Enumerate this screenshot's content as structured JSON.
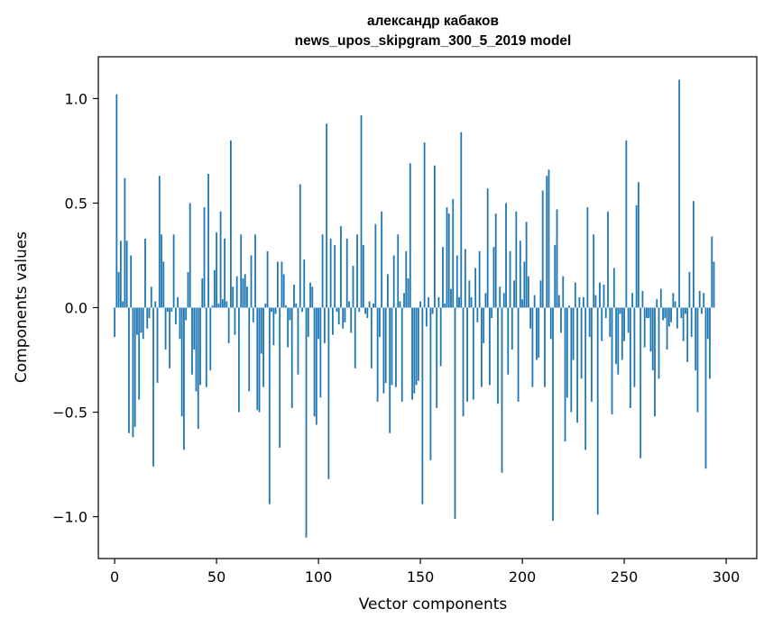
{
  "chart_data": {
    "type": "bar",
    "title": "александр кабаков",
    "subtitle": "news_upos_skipgram_300_5_2019 model",
    "xlabel": "Vector components",
    "ylabel": "Components values",
    "xlim": [
      -8,
      315
    ],
    "ylim": [
      -1.2,
      1.2
    ],
    "x_ticks": [
      0,
      50,
      100,
      150,
      200,
      250,
      300
    ],
    "x_tick_labels": [
      "0",
      "50",
      "100",
      "150",
      "200",
      "250",
      "300"
    ],
    "y_ticks": [
      1.0,
      0.5,
      0.0,
      -0.5,
      -1.0
    ],
    "y_tick_labels": [
      "1.0",
      "0.5",
      "0.0",
      "−0.5",
      "−1.0"
    ],
    "grid": false,
    "bar_color": "#1f77b4",
    "series": [
      {
        "name": "александр кабаков",
        "values": [
          -0.14,
          1.02,
          0.17,
          0.32,
          0.03,
          0.62,
          0.32,
          -0.6,
          0.25,
          -0.62,
          -0.57,
          -0.13,
          -0.44,
          -0.12,
          -0.15,
          0.33,
          -0.1,
          -0.05,
          0.1,
          -0.76,
          0.03,
          -0.36,
          0.63,
          0.35,
          0.22,
          -0.2,
          -0.02,
          -0.29,
          -0.02,
          0.35,
          -0.08,
          0.05,
          -0.15,
          -0.52,
          -0.68,
          -0.06,
          0.17,
          0.5,
          -0.32,
          -0.2,
          -0.4,
          -0.58,
          -0.37,
          0.14,
          0.48,
          -0.38,
          0.64,
          -0.3,
          0.01,
          0.18,
          0.36,
          0.02,
          0.46,
          0.04,
          0.33,
          0.03,
          -0.17,
          0.8,
          0.1,
          -0.13,
          0.15,
          -0.5,
          0.35,
          0.14,
          0.16,
          0.1,
          -0.4,
          0.25,
          -0.07,
          0.35,
          -0.49,
          -0.5,
          -0.22,
          -0.38,
          0.02,
          0.27,
          -0.94,
          -0.02,
          -0.18,
          -0.03,
          0.22,
          -0.67,
          0.22,
          0.16,
          0.01,
          -0.19,
          -0.06,
          -0.48,
          0.11,
          0.02,
          -0.32,
          0.59,
          -0.02,
          0.23,
          -1.1,
          -0.14,
          0.12,
          0.1,
          -0.52,
          -0.56,
          -0.15,
          -0.43,
          0.35,
          -0.17,
          0.88,
          -0.82,
          0.33,
          -0.13,
          0.3,
          -0.02,
          -0.08,
          0.39,
          -0.1,
          -0.07,
          0.33,
          0.03,
          -0.12,
          0.2,
          -0.29,
          0.35,
          -0.02,
          0.92,
          0.3,
          -0.03,
          -0.05,
          0.03,
          -0.29,
          0.02,
          0.4,
          -0.45,
          -0.14,
          0.46,
          -0.41,
          -0.36,
          0.16,
          -0.6,
          -0.37,
          0.25,
          -0.38,
          0.35,
          0.03,
          -0.45,
          0.07,
          0.27,
          0.14,
          0.69,
          -0.44,
          -0.41,
          -0.37,
          -0.35,
          0.03,
          -0.94,
          0.79,
          -0.09,
          0.05,
          -0.73,
          -0.03,
          0.68,
          -0.48,
          0.05,
          -0.28,
          0.29,
          0.02,
          0.48,
          0.45,
          0.09,
          0.52,
          -1.01,
          0.25,
          0.05,
          0.84,
          -0.52,
          0.28,
          -0.45,
          0.13,
          0.05,
          -0.44,
          0.19,
          -0.07,
          0.27,
          -0.38,
          -0.17,
          0.07,
          0.57,
          -0.37,
          -0.05,
          0.29,
          0.45,
          -0.46,
          0.1,
          -0.79,
          0.07,
          0.5,
          -0.32,
          0.27,
          -0.2,
          0.13,
          0.46,
          -0.45,
          0.32,
          0.04,
          0.22,
          0.41,
          0.15,
          -0.1,
          -0.38,
          0.06,
          -0.25,
          -0.24,
          0.13,
          0.56,
          -0.38,
          0.63,
          0.66,
          -0.15,
          -1.02,
          0.3,
          0.47,
          0.06,
          -0.12,
          0.15,
          -0.64,
          -0.43,
          0.01,
          -0.5,
          -0.25,
          0.12,
          -0.55,
          0.05,
          -0.34,
          0.05,
          -0.68,
          0.48,
          -0.14,
          -0.45,
          0.35,
          0.06,
          -0.99,
          0.12,
          -0.16,
          0.11,
          -0.05,
          0.46,
          -0.14,
          -0.51,
          0.19,
          -0.27,
          -0.32,
          -0.03,
          -0.25,
          -0.16,
          0.8,
          -0.12,
          -0.48,
          0.07,
          -0.38,
          0.49,
          0.6,
          -0.72,
          0.08,
          -0.19,
          -0.05,
          -0.05,
          -0.21,
          -0.3,
          -0.52,
          0.04,
          -0.34,
          0.09,
          -0.06,
          -0.05,
          -0.2,
          -0.09,
          -0.07,
          0.07,
          0.03,
          -0.1,
          1.09,
          -0.05,
          -0.16,
          -0.03,
          -0.26,
          0.17,
          -0.14,
          0.51,
          -0.3,
          -0.5,
          0.08,
          -0.03,
          0.07,
          -0.77,
          -0.15,
          -0.34,
          0.34,
          0.22
        ]
      }
    ]
  }
}
